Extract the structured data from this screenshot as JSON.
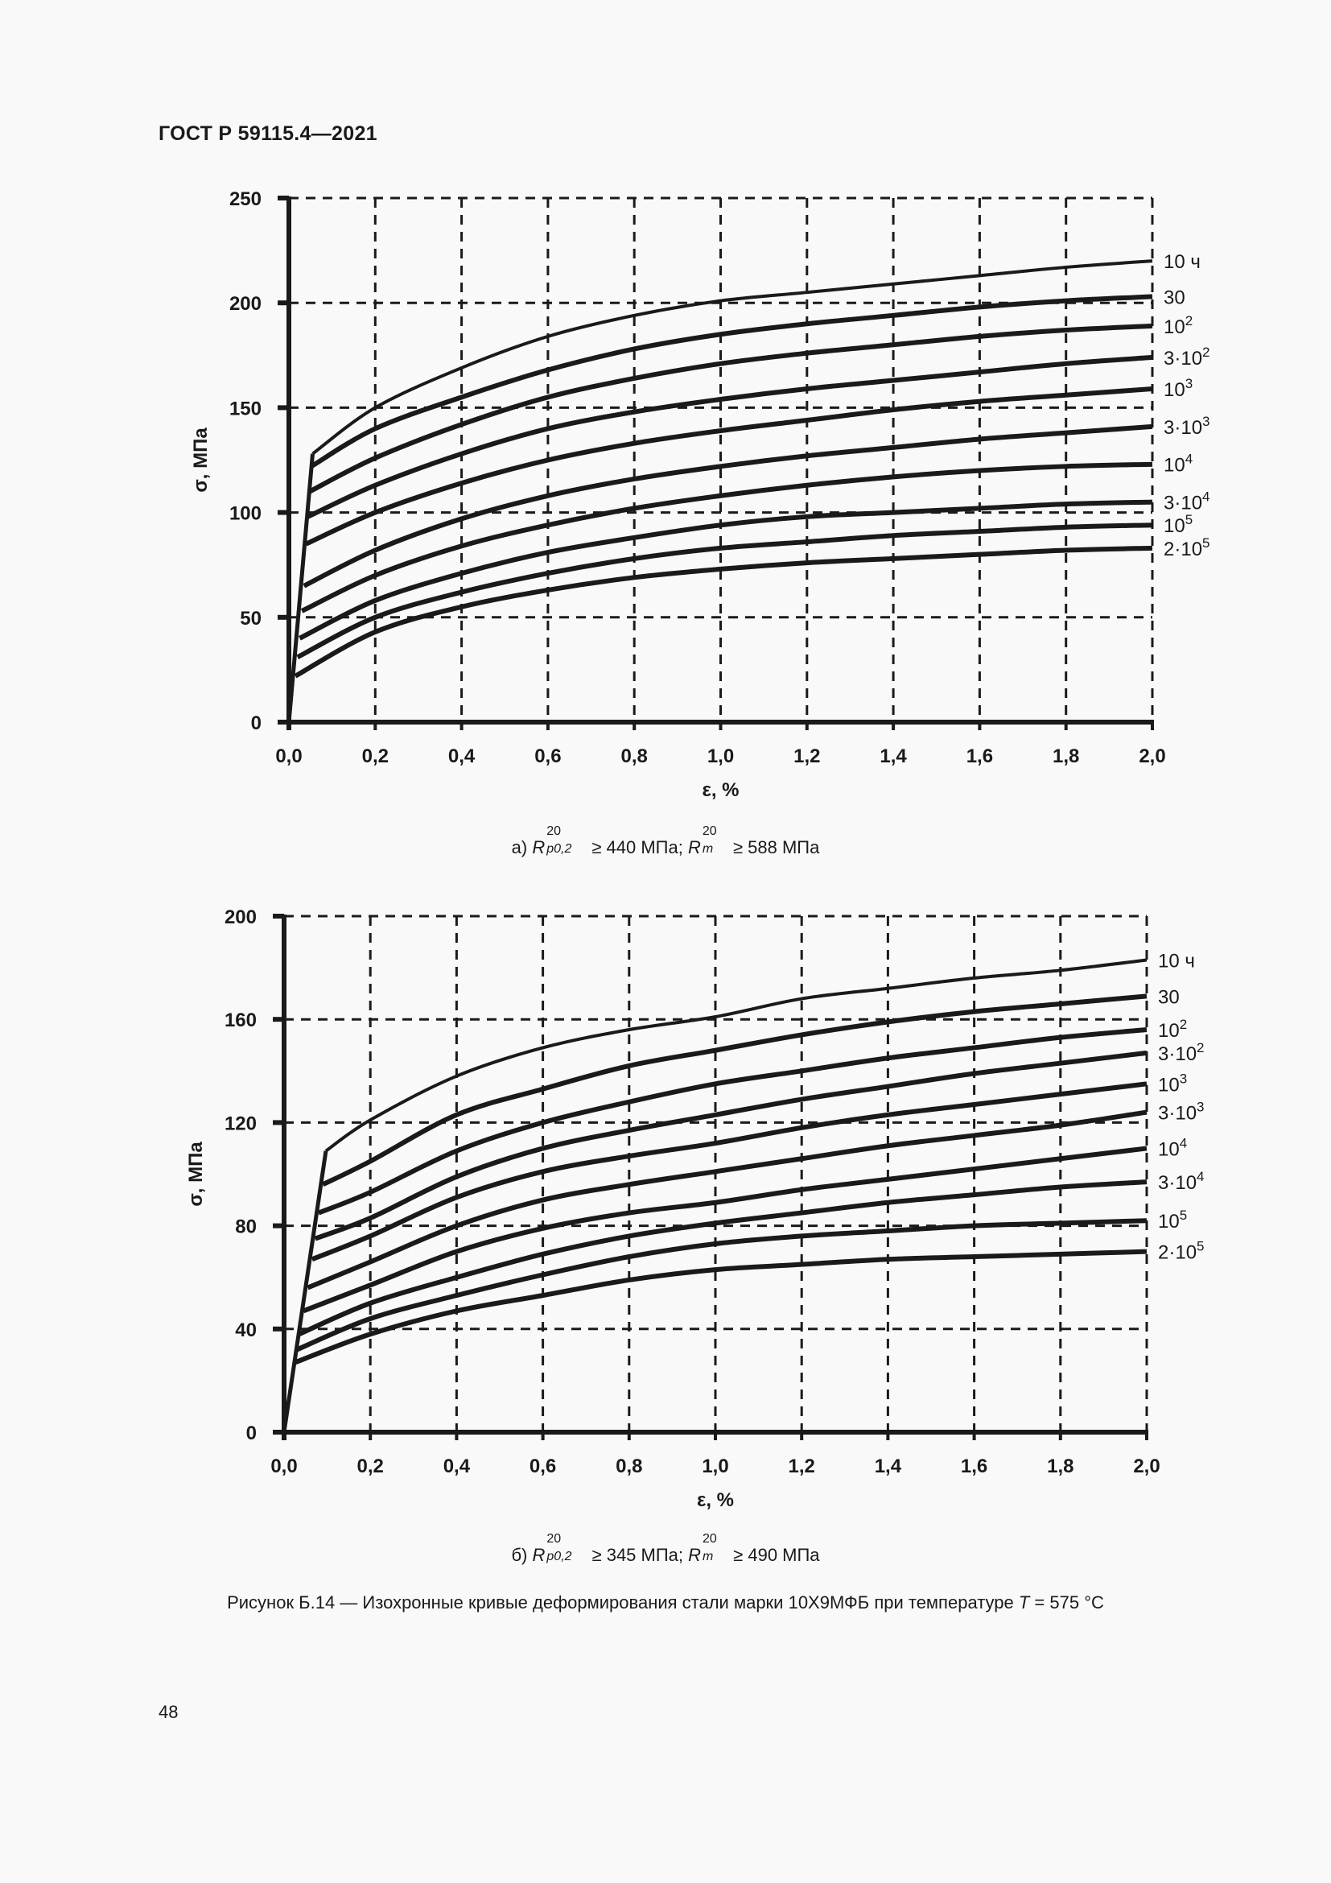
{
  "header": {
    "doc_id": "ГОСТ Р 59115.4—2021"
  },
  "figure": {
    "caption_prefix": "Рисунок Б.14 — Изохронные кривые деформирования стали марки 10Х9МФБ при температуре ",
    "caption_var": "T",
    "caption_suffix": " = 575 °C"
  },
  "page_number": "48",
  "charts": [
    {
      "id": "top",
      "subcaption": {
        "label": "а)",
        "r1": "R",
        "r1_sup": "20",
        "r1_sub": "p0,2",
        "r1_text": "≥ 440 МПа;",
        "r2": "R",
        "r2_sup": "20",
        "r2_sub": "m",
        "r2_text": "≥ 588 МПа"
      }
    },
    {
      "id": "bottom",
      "subcaption": {
        "label": "б)",
        "r1": "R",
        "r1_sup": "20",
        "r1_sub": "p0,2",
        "r1_text": "≥ 345 МПа;",
        "r2": "R",
        "r2_sup": "20",
        "r2_sub": "m",
        "r2_text": "≥ 490 МПа"
      }
    }
  ],
  "chart_data": [
    {
      "type": "line",
      "title": "а) Rp0,2^20 ≥ 440 МПа; Rm^20 ≥ 588 МПа",
      "xlabel": "ε, %",
      "ylabel": "σ, МПа",
      "xlim": [
        0,
        2.0
      ],
      "ylim": [
        0,
        250
      ],
      "xticks": [
        "0,0",
        "0,2",
        "0,4",
        "0,6",
        "0,8",
        "1,0",
        "1,2",
        "1,4",
        "1,6",
        "1,8",
        "2,0"
      ],
      "yticks": [
        "0",
        "50",
        "100",
        "150",
        "200",
        "250"
      ],
      "grid": true,
      "legend_position": "right-inline",
      "x": [
        0.0,
        0.2,
        0.4,
        0.6,
        0.8,
        1.0,
        1.2,
        1.4,
        1.6,
        1.8,
        2.0
      ],
      "series": [
        {
          "name": "10 ч",
          "base": "10 ч",
          "exp": "",
          "knee": [
            0.055,
            128
          ],
          "values": [
            null,
            150,
            169,
            184,
            194,
            201,
            205,
            209,
            213,
            217,
            220
          ]
        },
        {
          "name": "30",
          "base": "30",
          "exp": "",
          "knee": [
            0.052,
            122
          ],
          "values": [
            null,
            140,
            155,
            168,
            178,
            185,
            190,
            194,
            198,
            201,
            203
          ]
        },
        {
          "name": "10^2",
          "base": "10",
          "exp": "2",
          "knee": [
            0.048,
            110
          ],
          "values": [
            null,
            126,
            142,
            155,
            164,
            171,
            176,
            180,
            184,
            187,
            189
          ]
        },
        {
          "name": "3·10^2",
          "base": "3·10",
          "exp": "2",
          "knee": [
            0.044,
            98
          ],
          "values": [
            null,
            113,
            128,
            140,
            148,
            154,
            159,
            163,
            167,
            171,
            174
          ]
        },
        {
          "name": "10^3",
          "base": "10",
          "exp": "3",
          "knee": [
            0.04,
            85
          ],
          "values": [
            null,
            100,
            114,
            125,
            133,
            139,
            144,
            149,
            153,
            156,
            159
          ]
        },
        {
          "name": "3·10^3",
          "base": "3·10",
          "exp": "3",
          "knee": [
            0.035,
            65
          ],
          "values": [
            null,
            82,
            97,
            108,
            116,
            122,
            127,
            131,
            135,
            138,
            141
          ]
        },
        {
          "name": "10^4",
          "base": "10",
          "exp": "4",
          "knee": [
            0.03,
            53
          ],
          "values": [
            null,
            70,
            84,
            94,
            102,
            108,
            113,
            117,
            120,
            122,
            123
          ]
        },
        {
          "name": "3·10^4",
          "base": "3·10",
          "exp": "4",
          "knee": [
            0.025,
            40
          ],
          "values": [
            null,
            58,
            71,
            81,
            88,
            94,
            98,
            100,
            102,
            104,
            105
          ]
        },
        {
          "name": "10^5",
          "base": "10",
          "exp": "5",
          "knee": [
            0.02,
            31
          ],
          "values": [
            null,
            50,
            62,
            71,
            78,
            83,
            86,
            89,
            91,
            93,
            94
          ]
        },
        {
          "name": "2·10^5",
          "base": "2·10",
          "exp": "5",
          "knee": [
            0.015,
            22
          ],
          "values": [
            null,
            43,
            55,
            63,
            69,
            73,
            76,
            78,
            80,
            82,
            83
          ]
        }
      ]
    },
    {
      "type": "line",
      "title": "б) Rp0,2^20 ≥ 345 МПа; Rm^20 ≥ 490 МПа",
      "xlabel": "ε, %",
      "ylabel": "σ, МПа",
      "xlim": [
        0,
        2.0
      ],
      "ylim": [
        0,
        200
      ],
      "xticks": [
        "0,0",
        "0,2",
        "0,4",
        "0,6",
        "0,8",
        "1,0",
        "1,2",
        "1,4",
        "1,6",
        "1,8",
        "2,0"
      ],
      "yticks": [
        "0",
        "40",
        "80",
        "120",
        "160",
        "200"
      ],
      "grid": true,
      "legend_position": "right-inline",
      "x": [
        0.0,
        0.2,
        0.4,
        0.6,
        0.8,
        1.0,
        1.2,
        1.4,
        1.6,
        1.8,
        2.0
      ],
      "series": [
        {
          "name": "10 ч",
          "base": "10 ч",
          "exp": "",
          "knee": [
            0.097,
            109
          ],
          "values": [
            null,
            121,
            138,
            149,
            156,
            161,
            168,
            172,
            176,
            179,
            183
          ]
        },
        {
          "name": "30",
          "base": "30",
          "exp": "",
          "knee": [
            0.09,
            96
          ],
          "values": [
            null,
            105,
            123,
            133,
            142,
            148,
            154,
            159,
            163,
            166,
            169
          ]
        },
        {
          "name": "10^2",
          "base": "10",
          "exp": "2",
          "knee": [
            0.08,
            85
          ],
          "values": [
            null,
            93,
            109,
            120,
            128,
            135,
            140,
            145,
            149,
            153,
            156
          ]
        },
        {
          "name": "3·10^2",
          "base": "3·10",
          "exp": "2",
          "knee": [
            0.072,
            75
          ],
          "values": [
            null,
            83,
            99,
            110,
            117,
            123,
            129,
            134,
            139,
            143,
            147
          ]
        },
        {
          "name": "10^3",
          "base": "10",
          "exp": "3",
          "knee": [
            0.065,
            67
          ],
          "values": [
            null,
            76,
            91,
            101,
            107,
            112,
            118,
            123,
            127,
            131,
            135
          ]
        },
        {
          "name": "3·10^3",
          "base": "3·10",
          "exp": "3",
          "knee": [
            0.055,
            56
          ],
          "values": [
            null,
            66,
            80,
            90,
            96,
            101,
            106,
            111,
            115,
            119,
            124
          ]
        },
        {
          "name": "10^4",
          "base": "10",
          "exp": "4",
          "knee": [
            0.045,
            47
          ],
          "values": [
            null,
            57,
            70,
            79,
            85,
            89,
            94,
            98,
            102,
            106,
            110
          ]
        },
        {
          "name": "3·10^4",
          "base": "3·10",
          "exp": "4",
          "knee": [
            0.035,
            38
          ],
          "values": [
            null,
            50,
            60,
            69,
            76,
            81,
            85,
            89,
            92,
            95,
            97
          ]
        },
        {
          "name": "10^5",
          "base": "10",
          "exp": "5",
          "knee": [
            0.03,
            32
          ],
          "values": [
            null,
            44,
            53,
            61,
            68,
            73,
            76,
            78,
            80,
            81,
            82
          ]
        },
        {
          "name": "2·10^5",
          "base": "2·10",
          "exp": "5",
          "knee": [
            0.025,
            27
          ],
          "values": [
            null,
            38,
            47,
            53,
            59,
            63,
            65,
            67,
            68,
            69,
            70
          ]
        }
      ]
    }
  ]
}
